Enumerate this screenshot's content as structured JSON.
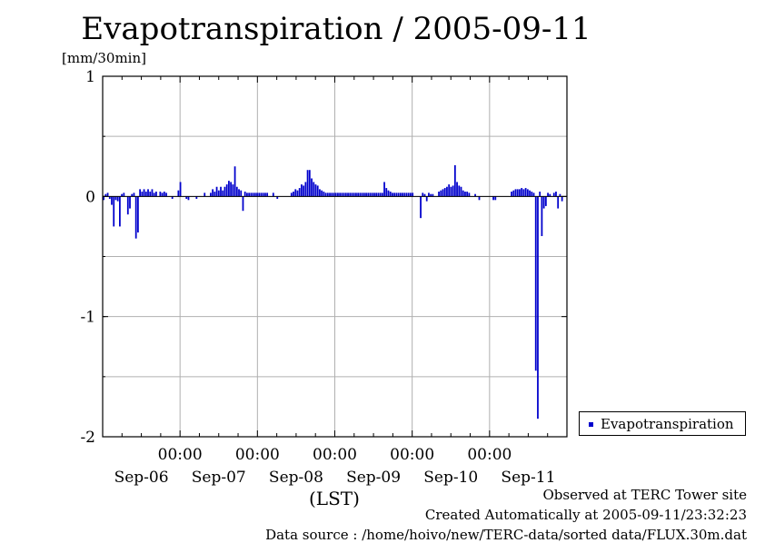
{
  "chart_data": {
    "type": "bar",
    "title": "Evapotranspiration / 2005-09-11",
    "ylabel": "[mm/30min]",
    "xlabel": "(LST)",
    "ylim": [
      -2,
      1
    ],
    "yticks": [
      -2,
      -1,
      0,
      1
    ],
    "xlim_days": [
      0,
      6
    ],
    "x_tick_hours": [
      "00:00",
      "00:00",
      "00:00",
      "00:00",
      "00:00"
    ],
    "x_tick_dates": [
      "Sep-06",
      "Sep-07",
      "Sep-08",
      "Sep-09",
      "Sep-10",
      "Sep-11"
    ],
    "grid": true,
    "legend_position": "right",
    "series": [
      {
        "name": "Evapotranspiration",
        "color": "#0000cc",
        "values": [
          -0.03,
          0.02,
          0.03,
          -0.02,
          -0.07,
          -0.25,
          -0.03,
          -0.04,
          -0.25,
          0.02,
          0.03,
          0,
          -0.15,
          -0.1,
          0.02,
          0.03,
          -0.35,
          -0.3,
          0.06,
          0.04,
          0.06,
          0.04,
          0.06,
          0.04,
          0.06,
          0.03,
          0.04,
          0,
          0.04,
          0.03,
          0.04,
          0.03,
          0,
          0,
          -0.02,
          0,
          0,
          0.05,
          0.12,
          0,
          0,
          -0.02,
          -0.03,
          0,
          0,
          0,
          -0.02,
          0,
          0,
          0,
          0.03,
          0,
          0,
          0.03,
          0.06,
          0.04,
          0.08,
          0.05,
          0.08,
          0.05,
          0.08,
          0.1,
          0.13,
          0.12,
          0.1,
          0.25,
          0.08,
          0.06,
          0.05,
          -0.12,
          0.04,
          0.03,
          0.03,
          0.03,
          0.03,
          0.03,
          0.03,
          0.03,
          0.03,
          0.03,
          0.03,
          0.03,
          0,
          0,
          0.03,
          0,
          -0.02,
          0,
          0,
          0,
          0,
          0,
          0,
          0.03,
          0.04,
          0.06,
          0.05,
          0.07,
          0.1,
          0.09,
          0.12,
          0.22,
          0.22,
          0.15,
          0.12,
          0.1,
          0.09,
          0.06,
          0.05,
          0.04,
          0.03,
          0.03,
          0.03,
          0.03,
          0.03,
          0.03,
          0.03,
          0.03,
          0.03,
          0.03,
          0.03,
          0.03,
          0.03,
          0.03,
          0.03,
          0.03,
          0.03,
          0.03,
          0.03,
          0.03,
          0.03,
          0.03,
          0.03,
          0.03,
          0.03,
          0.03,
          0.03,
          0.03,
          0.03,
          0.12,
          0.07,
          0.05,
          0.04,
          0.03,
          0.03,
          0.03,
          0.03,
          0.03,
          0.03,
          0.03,
          0.03,
          0.03,
          0.03,
          0.03,
          0,
          0,
          0,
          -0.18,
          0.03,
          0.02,
          -0.04,
          0.03,
          0.02,
          0.02,
          0,
          0,
          0.04,
          0.05,
          0.06,
          0.07,
          0.08,
          0.1,
          0.08,
          0.09,
          0.26,
          0.12,
          0.09,
          0.08,
          0.05,
          0.04,
          0.04,
          0.03,
          0,
          0,
          0.02,
          0,
          -0.03,
          0,
          0,
          0,
          0,
          0,
          0,
          -0.03,
          -0.03,
          0,
          0,
          0,
          0,
          0,
          0,
          0,
          0.04,
          0.05,
          0.06,
          0.06,
          0.06,
          0.07,
          0.06,
          0.07,
          0.06,
          0.05,
          0.04,
          0.03,
          -1.45,
          -1.85,
          0.04,
          -0.33,
          -0.1,
          -0.08,
          0.03,
          0.02,
          0,
          0.03,
          0.04,
          -0.1,
          0.02,
          -0.04
        ]
      }
    ]
  },
  "legend": {
    "label": "Evapotranspiration"
  },
  "footer": {
    "line1": "Observed at TERC Tower site",
    "line2": "Created Automatically at 2005-09-11/23:32:23",
    "line3": "Data source : /home/hoivo/new/TERC-data/sorted  data/FLUX.30m.dat"
  }
}
